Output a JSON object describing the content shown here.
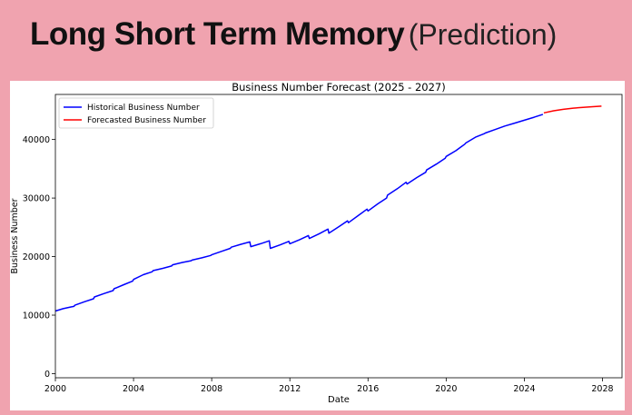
{
  "slide": {
    "title_main": "Long Short Term Memory",
    "title_sub": "(Prediction)"
  },
  "chart_data": {
    "type": "line",
    "title": "Business Number Forecast (2025 - 2027)",
    "xlabel": "Date",
    "ylabel": "Business Number",
    "xlim": [
      2000,
      2029
    ],
    "ylim": [
      -700,
      47700
    ],
    "xticks": [
      2000,
      2004,
      2008,
      2012,
      2016,
      2020,
      2024,
      2028
    ],
    "yticks": [
      0,
      10000,
      20000,
      30000,
      40000
    ],
    "legend_position": "top-left",
    "grid": false,
    "series": [
      {
        "name": "Historical Business Number",
        "color": "#0000ff",
        "x": [
          2000.0,
          2000.4,
          2000.8,
          2000.95,
          2001.0,
          2001.5,
          2001.95,
          2002.0,
          2002.5,
          2002.95,
          2003.0,
          2003.5,
          2003.95,
          2004.0,
          2004.5,
          2004.95,
          2005.0,
          2005.5,
          2005.95,
          2006.0,
          2006.5,
          2006.95,
          2007.0,
          2007.5,
          2007.95,
          2008.0,
          2008.5,
          2008.95,
          2009.0,
          2009.5,
          2009.95,
          2010.0,
          2010.5,
          2010.95,
          2011.0,
          2011.5,
          2011.95,
          2012.0,
          2012.5,
          2012.95,
          2013.0,
          2013.5,
          2013.95,
          2014.0,
          2014.5,
          2014.95,
          2015.0,
          2015.5,
          2015.95,
          2016.0,
          2016.5,
          2016.95,
          2017.0,
          2017.5,
          2017.95,
          2018.0,
          2018.5,
          2018.95,
          2019.0,
          2019.5,
          2019.95,
          2020.0,
          2020.5,
          2020.95,
          2021.0,
          2021.5,
          2021.95,
          2022.0,
          2022.5,
          2023.0,
          2023.5,
          2024.0,
          2024.5,
          2024.95
        ],
        "y": [
          10700,
          11100,
          11400,
          11500,
          11700,
          12300,
          12800,
          13100,
          13700,
          14200,
          14500,
          15200,
          15800,
          16100,
          16900,
          17400,
          17600,
          18000,
          18400,
          18600,
          19000,
          19300,
          19400,
          19800,
          20200,
          20300,
          20900,
          21400,
          21600,
          22100,
          22500,
          21700,
          22200,
          22700,
          21400,
          22000,
          22600,
          22200,
          22900,
          23600,
          23100,
          23900,
          24700,
          24000,
          25100,
          26100,
          25800,
          27000,
          28100,
          27800,
          29000,
          30000,
          30500,
          31600,
          32700,
          32400,
          33500,
          34400,
          34800,
          35800,
          36800,
          37100,
          38100,
          39200,
          39400,
          40400,
          41000,
          41100,
          41700,
          42300,
          42800,
          43300,
          43800,
          44300
        ]
      },
      {
        "name": "Forecasted Business Number",
        "color": "#ff0000",
        "x": [
          2025.0,
          2025.5,
          2026.0,
          2026.5,
          2027.0,
          2027.5,
          2027.95
        ],
        "y": [
          44550,
          44900,
          45150,
          45350,
          45500,
          45600,
          45700
        ]
      }
    ]
  }
}
